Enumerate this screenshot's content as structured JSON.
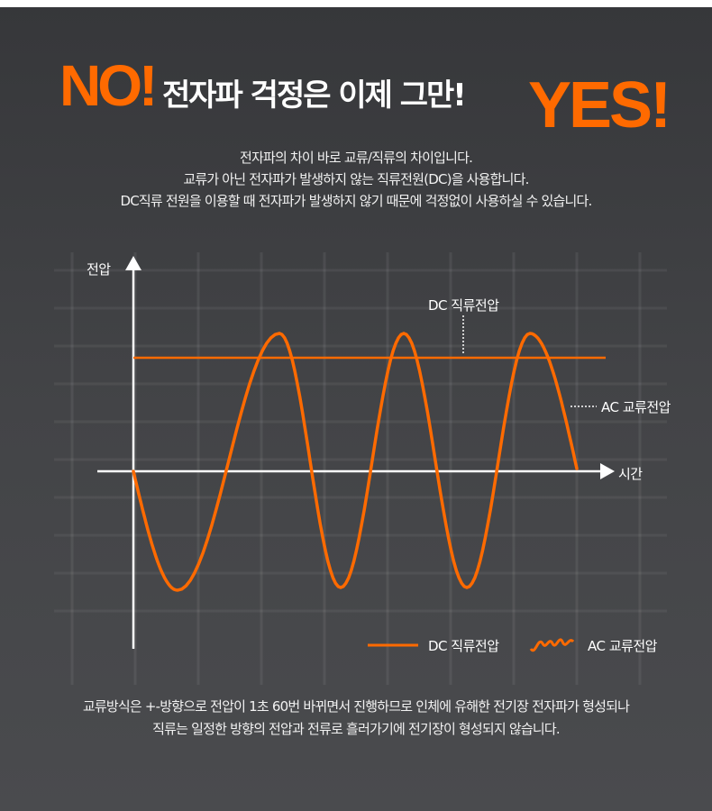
{
  "headline": {
    "no": "NO!",
    "main": "전자파 걱정은 이제 그만!",
    "yes": "YES!"
  },
  "intro": [
    "전자파의 차이 바로 교류/직류의 차이입니다.",
    "교류가 아닌 전자파가 발생하지 않는 직류전원(DC)을 사용합니다.",
    "DC직류 전원을 이용할 때 전자파가 발생하지 않기 때문에 걱정없이 사용하실 수 있습니다."
  ],
  "diagram": {
    "y_axis_label": "전압",
    "x_axis_label": "시간",
    "dc_label": "DC 직류전압",
    "ac_label": "AC 교류전압",
    "legend": [
      {
        "label": "DC 직류전압",
        "icon": "straight-line-icon"
      },
      {
        "label": "AC 교류전압",
        "icon": "wave-icon"
      }
    ],
    "colors": {
      "accent": "#ff6a00",
      "axis": "#ffffff"
    }
  },
  "bottom": [
    "교류방식은 +-방향으로 전압이 1초 60번 바뀌면서 진행하므로 인체에 유해한 전기장 전자파가 형성되나",
    "직류는 일정한 방향의 전압과 전류로 흘러가기에 전기장이 형성되지 않습니다."
  ]
}
